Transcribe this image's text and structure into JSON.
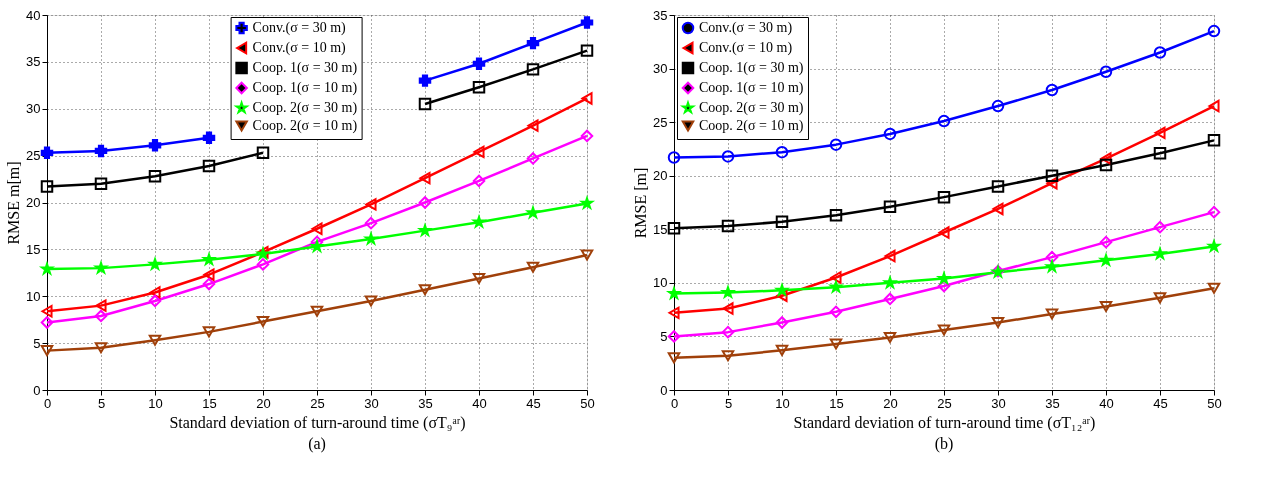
{
  "chart_data": [
    {
      "type": "line",
      "xlabel": "Standard deviation of turn-around time (σT₉ᵃʳ)",
      "ylabel": "RMSE m[m]",
      "annotations": [
        "(a)"
      ],
      "x": [
        0,
        5,
        10,
        15,
        20,
        25,
        30,
        35,
        40,
        45,
        50
      ],
      "xlim": [
        0,
        50
      ],
      "xticks": [
        0,
        5,
        10,
        15,
        20,
        25,
        30,
        35,
        40,
        45,
        50
      ],
      "ylim": [
        0,
        40
      ],
      "yticks": [
        0,
        5,
        10,
        15,
        20,
        25,
        30,
        35,
        40
      ],
      "grid": true,
      "legend": "top",
      "line_style": "solid",
      "series": [
        {
          "name": "Conv.(σ = 30 m)",
          "color": "#0000ff",
          "marker": "cross",
          "values": [
            25.3,
            25.5,
            26.1,
            26.9,
            null,
            null,
            null,
            33.0,
            34.8,
            37.0,
            39.2
          ]
        },
        {
          "name": "Conv.(σ = 10 m)",
          "color": "#ff0000",
          "marker": "triangle-left",
          "values": [
            8.4,
            9.0,
            10.4,
            12.3,
            14.7,
            17.2,
            19.8,
            22.6,
            25.4,
            28.2,
            31.1
          ]
        },
        {
          "name": "Coop. 1(σ = 30 m)",
          "color": "#000000",
          "marker": "square",
          "values": [
            21.7,
            22.0,
            22.8,
            23.9,
            25.3,
            null,
            null,
            30.5,
            32.3,
            34.2,
            36.2
          ]
        },
        {
          "name": "Coop. 1(σ = 10 m)",
          "color": "#ff00ff",
          "marker": "diamond",
          "values": [
            7.2,
            7.9,
            9.5,
            11.3,
            13.4,
            15.8,
            17.8,
            20.0,
            22.3,
            24.7,
            27.1
          ]
        },
        {
          "name": "Coop. 2(σ = 30 m)",
          "color": "#00ff00",
          "marker": "star",
          "values": [
            12.9,
            13.0,
            13.4,
            13.9,
            14.5,
            15.3,
            16.1,
            17.0,
            17.9,
            18.9,
            19.9
          ]
        },
        {
          "name": "Coop. 2(σ = 10 m)",
          "color": "#a0400a",
          "marker": "triangle-down",
          "values": [
            4.2,
            4.5,
            5.3,
            6.2,
            7.3,
            8.4,
            9.5,
            10.7,
            11.9,
            13.1,
            14.4
          ]
        }
      ]
    },
    {
      "type": "line",
      "xlabel": "Standard deviation of turn-around time (σT₁₂ᵃʳ)",
      "ylabel": "RMSE [m]",
      "annotations": [
        "(b)"
      ],
      "x": [
        0,
        5,
        10,
        15,
        20,
        25,
        30,
        35,
        40,
        45,
        50
      ],
      "xlim": [
        0,
        50
      ],
      "xticks": [
        0,
        5,
        10,
        15,
        20,
        25,
        30,
        35,
        40,
        45,
        50
      ],
      "ylim": [
        0,
        35
      ],
      "yticks": [
        0,
        5,
        10,
        15,
        20,
        25,
        30,
        35
      ],
      "grid": true,
      "legend": "top left",
      "line_style": "solid",
      "series": [
        {
          "name": "Conv.(σ = 30 m)",
          "color": "#0000ff",
          "marker": "circle",
          "values": [
            21.7,
            21.8,
            22.2,
            22.9,
            23.9,
            25.1,
            26.5,
            28.0,
            29.7,
            31.5,
            33.5
          ]
        },
        {
          "name": "Conv.(σ = 10 m)",
          "color": "#ff0000",
          "marker": "triangle-left",
          "values": [
            7.2,
            7.6,
            8.8,
            10.5,
            12.5,
            14.7,
            16.9,
            19.3,
            21.6,
            24.0,
            26.5
          ]
        },
        {
          "name": "Coop. 1(σ = 30 m)",
          "color": "#000000",
          "marker": "square",
          "values": [
            15.1,
            15.3,
            15.7,
            16.3,
            17.1,
            18.0,
            19.0,
            20.0,
            21.0,
            22.1,
            23.3
          ]
        },
        {
          "name": "Coop. 1(σ = 10 m)",
          "color": "#ff00ff",
          "marker": "diamond",
          "values": [
            5.0,
            5.4,
            6.3,
            7.3,
            8.5,
            9.7,
            11.1,
            12.4,
            13.8,
            15.2,
            16.6
          ]
        },
        {
          "name": "Coop. 2(σ = 30 m)",
          "color": "#00ff00",
          "marker": "star",
          "values": [
            9.0,
            9.1,
            9.3,
            9.6,
            10.0,
            10.4,
            11.0,
            11.5,
            12.1,
            12.7,
            13.4
          ]
        },
        {
          "name": "Coop. 2(σ = 10 m)",
          "color": "#a0400a",
          "marker": "triangle-down",
          "values": [
            3.0,
            3.2,
            3.7,
            4.3,
            4.9,
            5.6,
            6.3,
            7.1,
            7.8,
            8.6,
            9.5
          ]
        }
      ]
    }
  ]
}
